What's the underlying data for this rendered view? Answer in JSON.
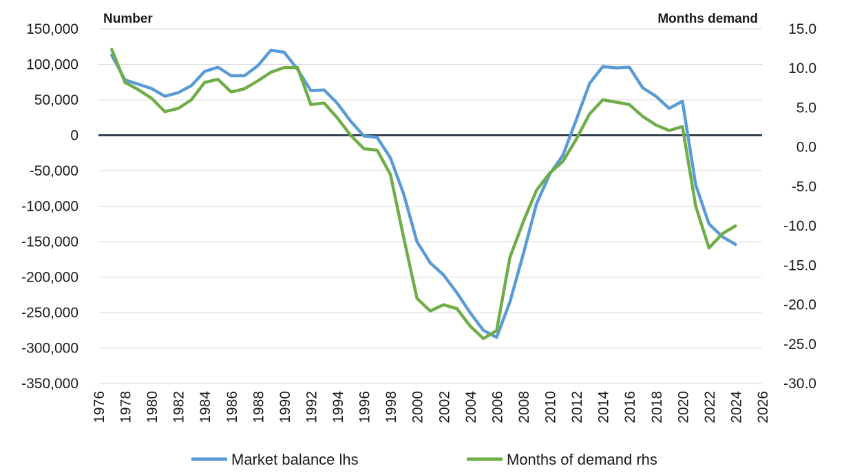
{
  "chart_data": {
    "type": "line",
    "left_axis_title": "Number",
    "right_axis_title": "Months demand",
    "x_range": [
      1976,
      2026
    ],
    "x_ticks": [
      "1976",
      "1978",
      "1980",
      "1982",
      "1984",
      "1986",
      "1988",
      "1990",
      "1992",
      "1994",
      "1996",
      "1998",
      "2000",
      "2002",
      "2004",
      "2006",
      "2008",
      "2010",
      "2012",
      "2014",
      "2016",
      "2018",
      "2020",
      "2022",
      "2024",
      "2026"
    ],
    "y_left_range": [
      -350000,
      150000
    ],
    "y_left_ticks": [
      "150,000",
      "100,000",
      "50,000",
      "0",
      "-50,000",
      "-100,000",
      "-150,000",
      "-200,000",
      "-250,000",
      "-300,000",
      "-350,000"
    ],
    "y_right_range": [
      -30,
      15
    ],
    "y_right_ticks": [
      "15.0",
      "10.0",
      "5.0",
      "0.0",
      "-5.0",
      "-10.0",
      "-15.0",
      "-20.0",
      "-25.0",
      "-30.0"
    ],
    "grid": "horizontal",
    "legend_position": "bottom",
    "series": [
      {
        "name": "Market balance lhs",
        "axis": "left",
        "color": "#5b9bd5",
        "x": [
          1977,
          1978,
          1979,
          1980,
          1981,
          1982,
          1983,
          1984,
          1985,
          1986,
          1987,
          1988,
          1989,
          1990,
          1991,
          1992,
          1993,
          1994,
          1995,
          1996,
          1997,
          1998,
          1999,
          2000,
          2001,
          2002,
          2003,
          2004,
          2005,
          2006,
          2007,
          2008,
          2009,
          2010,
          2011,
          2012,
          2013,
          2014,
          2015,
          2016,
          2017,
          2018,
          2019,
          2020,
          2021,
          2022,
          2023,
          2024
        ],
        "y": [
          113000,
          78000,
          72000,
          66000,
          55000,
          60000,
          70000,
          90000,
          96000,
          84000,
          84000,
          98000,
          120000,
          117000,
          93000,
          63000,
          64000,
          45000,
          20000,
          -1000,
          -3000,
          -32000,
          -83000,
          -150000,
          -180000,
          -197000,
          -222000,
          -250000,
          -275000,
          -285000,
          -235000,
          -168000,
          -97000,
          -55000,
          -28000,
          22000,
          73000,
          97000,
          95000,
          96000,
          67000,
          55000,
          38000,
          48000,
          -70000,
          -125000,
          -143000,
          -154000
        ]
      },
      {
        "name": "Months of demand rhs",
        "axis": "right",
        "color": "#70ad47",
        "x": [
          1977,
          1978,
          1979,
          1980,
          1981,
          1982,
          1983,
          1984,
          1985,
          1986,
          1987,
          1988,
          1989,
          1990,
          1991,
          1992,
          1993,
          1994,
          1995,
          1996,
          1997,
          1998,
          1999,
          2000,
          2001,
          2002,
          2003,
          2004,
          2005,
          2006,
          2007,
          2008,
          2009,
          2010,
          2011,
          2012,
          2013,
          2014,
          2015,
          2016,
          2017,
          2018,
          2019,
          2020,
          2021,
          2022,
          2023,
          2024
        ],
        "y": [
          12.4,
          8.2,
          7.3,
          6.2,
          4.5,
          4.9,
          6.0,
          8.2,
          8.6,
          7.0,
          7.4,
          8.4,
          9.5,
          10.1,
          10.1,
          5.4,
          5.6,
          3.7,
          1.5,
          -0.2,
          -0.4,
          -3.5,
          -11.5,
          -19.2,
          -20.8,
          -20.0,
          -20.5,
          -22.7,
          -24.3,
          -23.3,
          -14.0,
          -9.5,
          -5.5,
          -3.3,
          -1.8,
          1.0,
          4.2,
          6.0,
          5.7,
          5.4,
          3.9,
          2.8,
          2.1,
          2.6,
          -7.5,
          -12.8,
          -11.0,
          -10.0
        ]
      }
    ]
  }
}
